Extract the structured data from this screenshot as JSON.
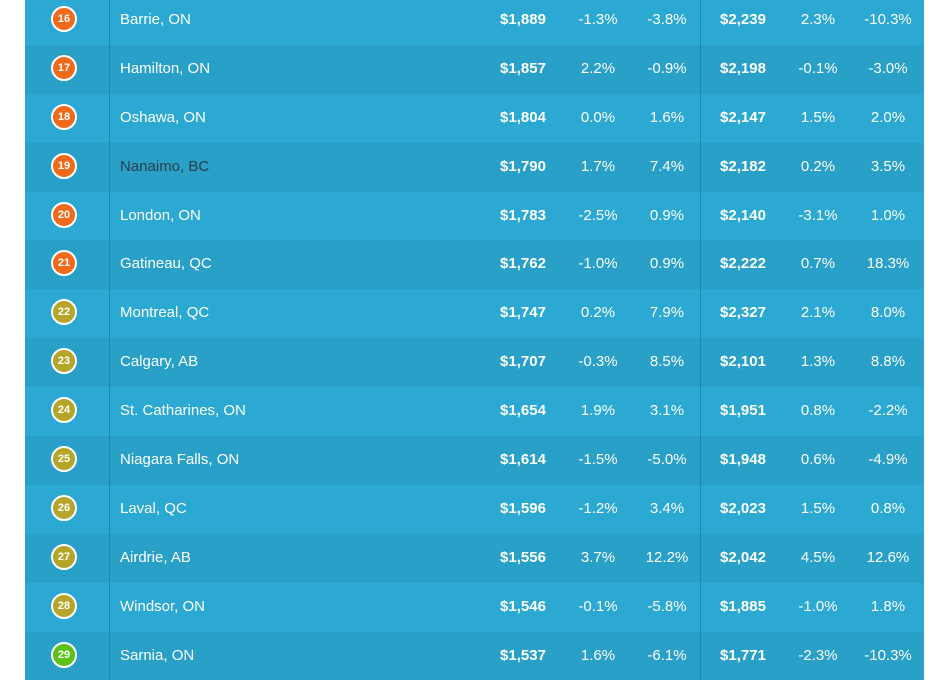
{
  "colors": {
    "rank_orange": "#f06a1b",
    "rank_olive": "#b5a528",
    "rank_green": "#5cc21a",
    "row_odd": "#2ba9d2",
    "row_even": "#28a0c7",
    "city_dark_text": "#2c3e4a"
  },
  "rows": [
    {
      "rank": "16",
      "badge": "orange",
      "city": "Barrie, ON",
      "price_1": "$1,889",
      "mom_1": "-1.3%",
      "yoy_1": "-3.8%",
      "price_2": "$2,239",
      "mom_2": "2.3%",
      "yoy_2": "-10.3%"
    },
    {
      "rank": "17",
      "badge": "orange",
      "city": "Hamilton, ON",
      "price_1": "$1,857",
      "mom_1": "2.2%",
      "yoy_1": "-0.9%",
      "price_2": "$2,198",
      "mom_2": "-0.1%",
      "yoy_2": "-3.0%"
    },
    {
      "rank": "18",
      "badge": "orange",
      "city": "Oshawa, ON",
      "price_1": "$1,804",
      "mom_1": "0.0%",
      "yoy_1": "1.6%",
      "price_2": "$2,147",
      "mom_2": "1.5%",
      "yoy_2": "2.0%"
    },
    {
      "rank": "19",
      "badge": "orange",
      "city": "Nanaimo, BC",
      "city_dark": true,
      "price_1": "$1,790",
      "mom_1": "1.7%",
      "yoy_1": "7.4%",
      "price_2": "$2,182",
      "mom_2": "0.2%",
      "yoy_2": "3.5%"
    },
    {
      "rank": "20",
      "badge": "orange",
      "city": "London, ON",
      "price_1": "$1,783",
      "mom_1": "-2.5%",
      "yoy_1": "0.9%",
      "price_2": "$2,140",
      "mom_2": "-3.1%",
      "yoy_2": "1.0%"
    },
    {
      "rank": "21",
      "badge": "orange",
      "city": "Gatineau, QC",
      "price_1": "$1,762",
      "mom_1": "-1.0%",
      "yoy_1": "0.9%",
      "price_2": "$2,222",
      "mom_2": "0.7%",
      "yoy_2": "18.3%"
    },
    {
      "rank": "22",
      "badge": "olive",
      "city": "Montreal, QC",
      "price_1": "$1,747",
      "mom_1": "0.2%",
      "yoy_1": "7.9%",
      "price_2": "$2,327",
      "mom_2": "2.1%",
      "yoy_2": "8.0%"
    },
    {
      "rank": "23",
      "badge": "olive",
      "city": "Calgary, AB",
      "price_1": "$1,707",
      "mom_1": "-0.3%",
      "yoy_1": "8.5%",
      "price_2": "$2,101",
      "mom_2": "1.3%",
      "yoy_2": "8.8%"
    },
    {
      "rank": "24",
      "badge": "olive",
      "city": "St. Catharines, ON",
      "price_1": "$1,654",
      "mom_1": "1.9%",
      "yoy_1": "3.1%",
      "price_2": "$1,951",
      "mom_2": "0.8%",
      "yoy_2": "-2.2%"
    },
    {
      "rank": "25",
      "badge": "olive",
      "city": "Niagara Falls, ON",
      "price_1": "$1,614",
      "mom_1": "-1.5%",
      "yoy_1": "-5.0%",
      "price_2": "$1,948",
      "mom_2": "0.6%",
      "yoy_2": "-4.9%"
    },
    {
      "rank": "26",
      "badge": "olive",
      "city": "Laval, QC",
      "price_1": "$1,596",
      "mom_1": "-1.2%",
      "yoy_1": "3.4%",
      "price_2": "$2,023",
      "mom_2": "1.5%",
      "yoy_2": "0.8%"
    },
    {
      "rank": "27",
      "badge": "olive",
      "city": "Airdrie, AB",
      "price_1": "$1,556",
      "mom_1": "3.7%",
      "yoy_1": "12.2%",
      "price_2": "$2,042",
      "mom_2": "4.5%",
      "yoy_2": "12.6%"
    },
    {
      "rank": "28",
      "badge": "olive",
      "city": "Windsor, ON",
      "price_1": "$1,546",
      "mom_1": "-0.1%",
      "yoy_1": "-5.8%",
      "price_2": "$1,885",
      "mom_2": "-1.0%",
      "yoy_2": "1.8%"
    },
    {
      "rank": "29",
      "badge": "green",
      "city": "Sarnia, ON",
      "price_1": "$1,537",
      "mom_1": "1.6%",
      "yoy_1": "-6.1%",
      "price_2": "$1,771",
      "mom_2": "-2.3%",
      "yoy_2": "-10.3%"
    }
  ]
}
